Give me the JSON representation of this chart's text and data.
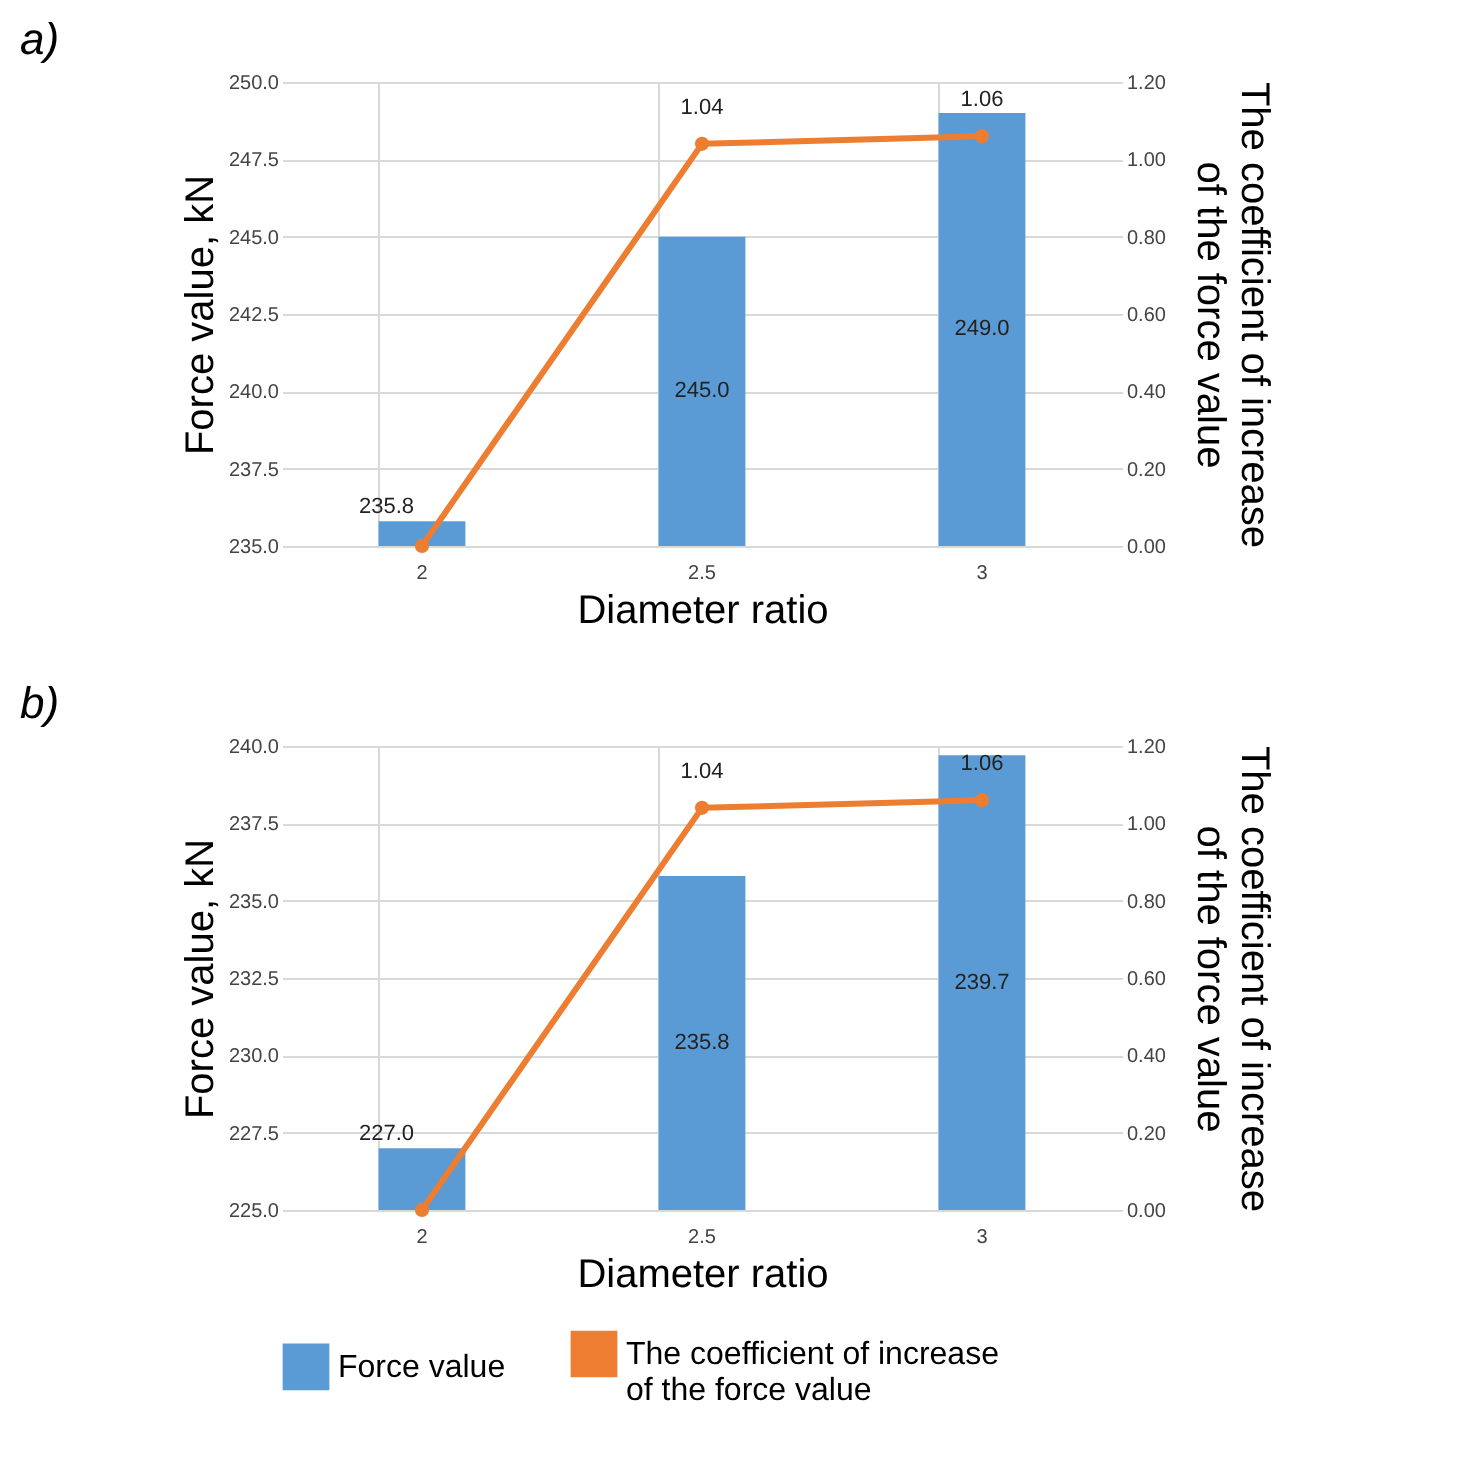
{
  "chart_data": [
    {
      "type": "bar",
      "title": "a)",
      "categories": [
        "2",
        "2.5",
        "3"
      ],
      "xlabel": "Diameter ratio",
      "ylabel": "Force value, kN",
      "y2label": "The coefficient of increase of the force value",
      "ylim": [
        235,
        250
      ],
      "yticks": [
        {
          "value": 235,
          "label": "235.0"
        },
        {
          "value": 237.5,
          "label": "237.5"
        },
        {
          "value": 240,
          "label": "240.0"
        },
        {
          "value": 242.5,
          "label": "242.5"
        },
        {
          "value": 245,
          "label": "245.0"
        },
        {
          "value": 247.5,
          "label": "247.5"
        },
        {
          "value": 250,
          "label": "250.0"
        }
      ],
      "y2lim": [
        0,
        1.2
      ],
      "y2ticks": [
        {
          "value": 0,
          "label": "0.00"
        },
        {
          "value": 0.2,
          "label": "0.20"
        },
        {
          "value": 0.4,
          "label": "0.40"
        },
        {
          "value": 0.6,
          "label": "0.60"
        },
        {
          "value": 0.8,
          "label": "0.80"
        },
        {
          "value": 1,
          "label": "1.00"
        },
        {
          "value": 1.2,
          "label": "1.20"
        }
      ],
      "grid": true,
      "marker": "circle",
      "line_style": "solid",
      "series": [
        {
          "type": "bar",
          "color": "#5b9bd5",
          "values": [
            235.8,
            245.0,
            249.0
          ],
          "value_labels": [
            "235.8",
            "245.0",
            "249.0"
          ]
        },
        {
          "type": "line",
          "axis": "y2",
          "color": "#ed7d31",
          "values": [
            0,
            1.04,
            1.06
          ],
          "value_labels": [
            null,
            "1.04",
            "1.06"
          ]
        }
      ]
    },
    {
      "type": "bar",
      "title": "b)",
      "categories": [
        "2",
        "2.5",
        "3"
      ],
      "xlabel": "Diameter ratio",
      "ylabel": "Force value, kN",
      "y2label": "The coefficient of increase of the force value",
      "ylim": [
        225,
        240
      ],
      "yticks": [
        {
          "value": 225,
          "label": "225.0"
        },
        {
          "value": 227.5,
          "label": "227.5"
        },
        {
          "value": 230,
          "label": "230.0"
        },
        {
          "value": 232.5,
          "label": "232.5"
        },
        {
          "value": 235,
          "label": "235.0"
        },
        {
          "value": 237.5,
          "label": "237.5"
        },
        {
          "value": 240,
          "label": "240.0"
        }
      ],
      "y2lim": [
        0,
        1.2
      ],
      "y2ticks": [
        {
          "value": 0,
          "label": "0.00"
        },
        {
          "value": 0.2,
          "label": "0.20"
        },
        {
          "value": 0.4,
          "label": "0.40"
        },
        {
          "value": 0.6,
          "label": "0.60"
        },
        {
          "value": 0.8,
          "label": "0.80"
        },
        {
          "value": 1,
          "label": "1.00"
        },
        {
          "value": 1.2,
          "label": "1.20"
        }
      ],
      "grid": true,
      "marker": "circle",
      "line_style": "solid",
      "legend": "bottom",
      "series": [
        {
          "type": "bar",
          "name": "Force value",
          "color": "#5b9bd5",
          "values": [
            227.0,
            235.8,
            239.7
          ],
          "value_labels": [
            "227.0",
            "235.8",
            "239.7"
          ]
        },
        {
          "type": "line",
          "name": "The coefficient of increase of the force value",
          "axis": "y2",
          "color": "#ed7d31",
          "values": [
            0,
            1.04,
            1.06
          ],
          "value_labels": [
            null,
            "1.04",
            "1.06"
          ]
        }
      ]
    }
  ]
}
